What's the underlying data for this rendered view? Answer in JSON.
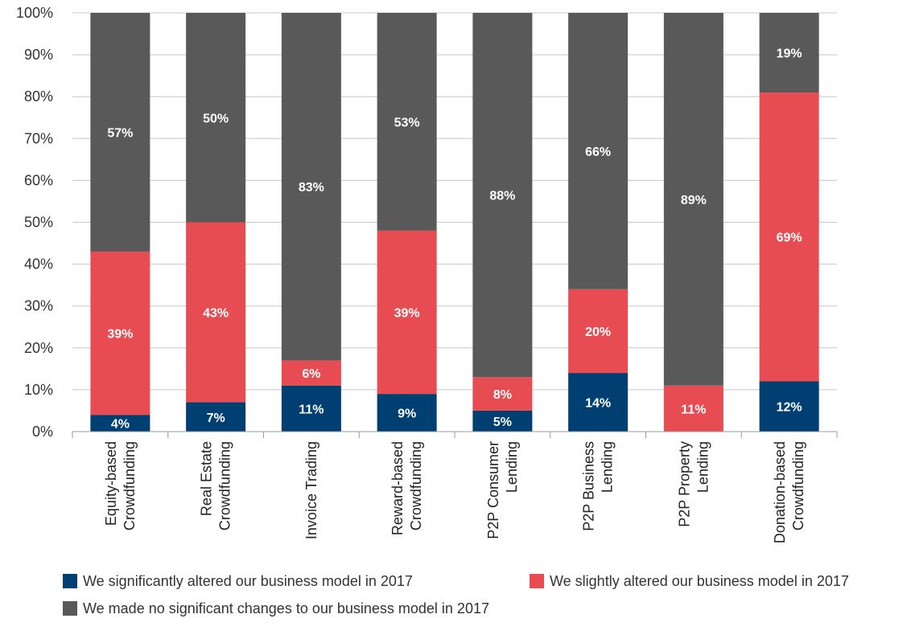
{
  "chart_data": {
    "type": "bar",
    "stacked": true,
    "title": "",
    "xlabel": "",
    "ylabel": "",
    "ylim": [
      0,
      100
    ],
    "yticks": [
      "0%",
      "10%",
      "20%",
      "30%",
      "40%",
      "50%",
      "60%",
      "70%",
      "80%",
      "90%",
      "100%"
    ],
    "categories": [
      [
        "Equity-based",
        "Crowdfunding"
      ],
      [
        "Real Estate",
        "Crowdfunding"
      ],
      [
        "Invoice Trading"
      ],
      [
        "Reward-based",
        "Crowdfunding"
      ],
      [
        "P2P Consumer",
        "Lending"
      ],
      [
        "P2P Business",
        "Lending"
      ],
      [
        "P2P Property",
        "Lending"
      ],
      [
        "Donation-based",
        "Crowdfunding"
      ]
    ],
    "series": [
      {
        "name": "We significantly altered our business model in 2017",
        "color": "#003f72",
        "values": [
          4,
          7,
          11,
          9,
          5,
          14,
          0,
          12
        ],
        "labels": [
          "4%",
          "7%",
          "11%",
          "9%",
          "5%",
          "14%",
          "",
          "12%"
        ]
      },
      {
        "name": "We slightly altered our business model in 2017",
        "color": "#e84c53",
        "values": [
          39,
          43,
          6,
          39,
          8,
          20,
          11,
          69
        ],
        "labels": [
          "39%",
          "43%",
          "6%",
          "39%",
          "8%",
          "20%",
          "11%",
          "69%"
        ]
      },
      {
        "name": "We made no significant changes to our business model in 2017",
        "color": "#595959",
        "values": [
          57,
          50,
          83,
          53,
          88,
          66,
          89,
          19
        ],
        "labels": [
          "57%",
          "50%",
          "83%",
          "53%",
          "88%",
          "66%",
          "89%",
          "19%"
        ]
      }
    ],
    "grid": true,
    "legend_position": "bottom"
  }
}
